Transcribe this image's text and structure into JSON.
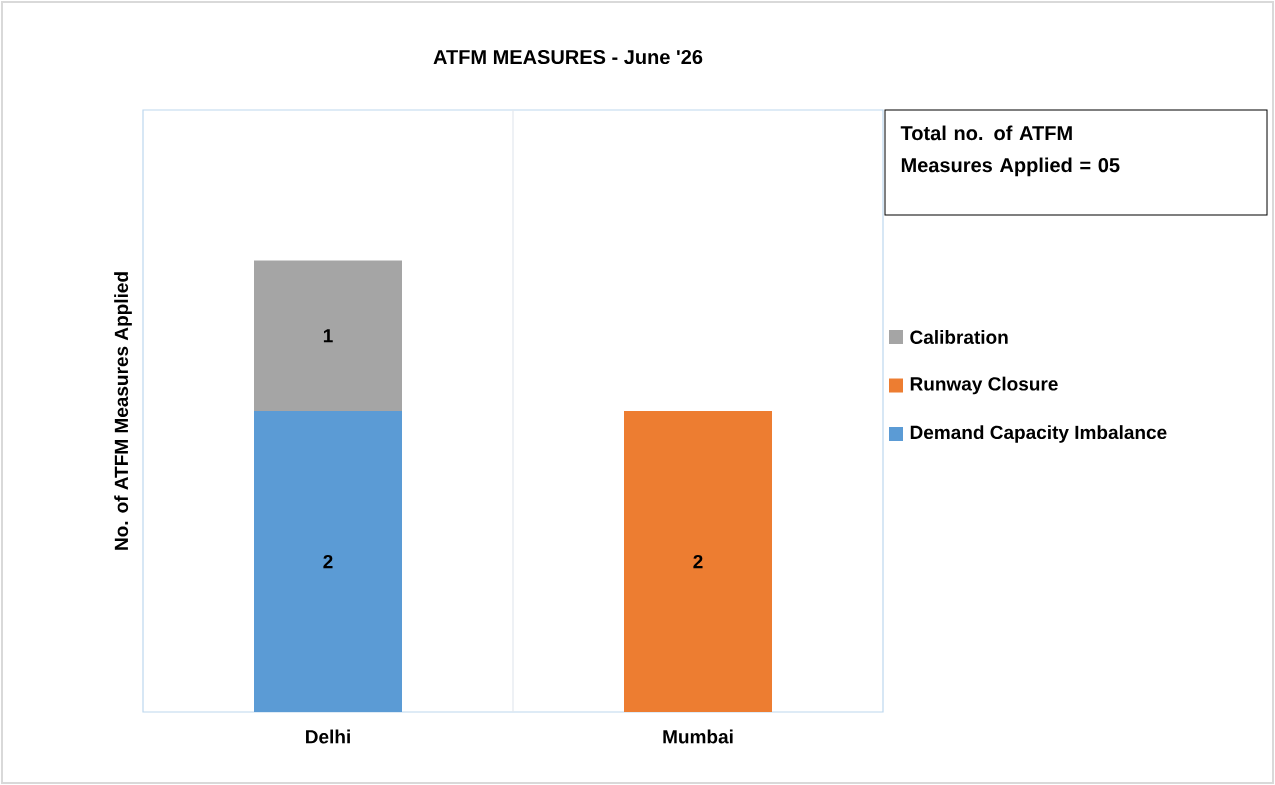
{
  "chart_data": {
    "type": "bar",
    "title": "ATFM MEASURES - June '26",
    "ylabel": "No. of ATFM Measures Applied",
    "categories": [
      "Delhi",
      "Mumbai"
    ],
    "series": [
      {
        "name": "Demand Capacity Imbalance",
        "color": "#5b9bd5",
        "values": [
          2,
          null
        ]
      },
      {
        "name": "Runway Closure",
        "color": "#ed7d31",
        "values": [
          null,
          2
        ]
      },
      {
        "name": "Calibration",
        "color": "#a5a5a5",
        "values": [
          1,
          null
        ]
      }
    ],
    "stacked": true,
    "ylim": [
      0,
      4
    ],
    "grid": "x",
    "legend": "right",
    "data_labels": true,
    "tick_labels": "x",
    "annotations": [
      "Total no. of ATFM Measures Applied = 05"
    ]
  }
}
